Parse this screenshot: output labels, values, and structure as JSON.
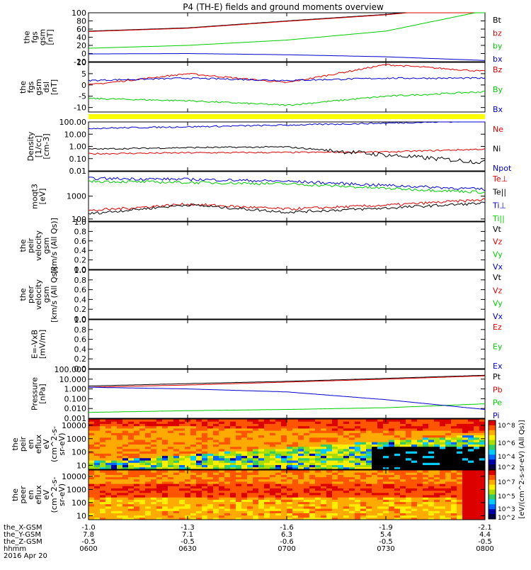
{
  "title": "P4 (TH-E) fields and ground moments overview",
  "colors": {
    "black": "#000000",
    "red": "#dd0000",
    "green": "#00cc00",
    "blue": "#0000cc",
    "yellow": "#ffff00"
  },
  "panels": [
    {
      "id": "fgs-nt",
      "ylabel": [
        "the",
        "fgs",
        "gsm",
        "[nT]"
      ],
      "ylim": [
        -20,
        100
      ],
      "ticks": [
        "100",
        "80",
        "60",
        "40",
        "20",
        "0",
        "-20"
      ],
      "tickvals": [
        100,
        80,
        60,
        40,
        20,
        0,
        -20
      ],
      "legend": [
        {
          "label": "Bt",
          "color": "#000000"
        },
        {
          "label": "bz",
          "color": "#dd0000"
        },
        {
          "label": "by",
          "color": "#00cc00"
        },
        {
          "label": "bx",
          "color": "#0000cc"
        }
      ]
    },
    {
      "id": "fgs-dsl",
      "ylabel": [
        "the",
        "fgs",
        "gsm",
        "dsl",
        "[nT]"
      ],
      "ylim": [
        -12,
        10
      ],
      "ticks": [
        "10",
        "5",
        "0",
        "-5",
        "-10"
      ],
      "tickvals": [
        10,
        5,
        0,
        -5,
        -10
      ],
      "legend": [
        {
          "label": "Bz",
          "color": "#dd0000"
        },
        {
          "label": "By",
          "color": "#00cc00"
        },
        {
          "label": "Bx",
          "color": "#0000cc"
        }
      ]
    },
    {
      "id": "density",
      "ylabel": [
        "Density",
        "[1/cc]",
        "[cm-3]"
      ],
      "log": true,
      "ylim": [
        0.01,
        100
      ],
      "ticks": [
        "100.00",
        "10.00",
        "1.00",
        "0.10",
        "0.01"
      ],
      "tickvals": [
        100,
        10,
        1,
        0.1,
        0.01
      ],
      "legend": [
        {
          "label": "Ne",
          "color": "#dd0000"
        },
        {
          "label": "Ni",
          "color": "#000000"
        },
        {
          "label": "Npot",
          "color": "#0000cc"
        }
      ]
    },
    {
      "id": "temperature",
      "ylabel": [
        "moqt3",
        "[eV]"
      ],
      "log": true,
      "ylim": [
        80,
        12000
      ],
      "ticks": [
        "1000",
        "100"
      ],
      "tickvals": [
        1000,
        100
      ],
      "legend": [
        {
          "label": "Te⊥",
          "color": "#dd0000"
        },
        {
          "label": "Te||",
          "color": "#000000"
        },
        {
          "label": "Ti⊥",
          "color": "#0000cc"
        },
        {
          "label": "Ti||",
          "color": "#00cc00"
        }
      ]
    },
    {
      "id": "peir-velocity",
      "ylabel": [
        "the",
        "peir",
        "velocity",
        "gsm",
        "[km/s (All Qs)]"
      ],
      "ylim": [
        0,
        1
      ],
      "ticks": [
        "1.0",
        "0.8",
        "0.6",
        "0.4",
        "0.2",
        "0.0"
      ],
      "tickvals": [
        1,
        0.8,
        0.6,
        0.4,
        0.2,
        0
      ],
      "legend": [
        {
          "label": "Vt",
          "color": "#000000"
        },
        {
          "label": "Vz",
          "color": "#dd0000"
        },
        {
          "label": "Vy",
          "color": "#00cc00"
        },
        {
          "label": "Vx",
          "color": "#0000cc"
        }
      ]
    },
    {
      "id": "peer-velocity",
      "ylabel": [
        "the",
        "peer",
        "velocity",
        "gsm",
        "[km/s (All Qs)]"
      ],
      "ylim": [
        0,
        1
      ],
      "ticks": [
        "1.0",
        "0.8",
        "0.6",
        "0.4",
        "0.2",
        "0.0"
      ],
      "tickvals": [
        1,
        0.8,
        0.6,
        0.4,
        0.2,
        0
      ],
      "legend": [
        {
          "label": "Vt",
          "color": "#000000"
        },
        {
          "label": "Vz",
          "color": "#dd0000"
        },
        {
          "label": "Vy",
          "color": "#00cc00"
        },
        {
          "label": "Vx",
          "color": "#0000cc"
        }
      ]
    },
    {
      "id": "efield",
      "ylabel": [
        "E=-VxB",
        "[mV/m]"
      ],
      "ylim": [
        0,
        1
      ],
      "ticks": [
        "1.0",
        "0.8",
        "0.6",
        "0.4",
        "0.2",
        "0.0"
      ],
      "tickvals": [
        1,
        0.8,
        0.6,
        0.4,
        0.2,
        0
      ],
      "legend": [
        {
          "label": "Ez",
          "color": "#dd0000"
        },
        {
          "label": "Ey",
          "color": "#00cc00"
        },
        {
          "label": "Ex",
          "color": "#0000cc"
        }
      ]
    },
    {
      "id": "pressure",
      "ylabel": [
        "Pressure",
        "[nPa]"
      ],
      "log": true,
      "ylim": [
        0.001,
        100
      ],
      "ticks": [
        "100.000",
        "10.000",
        "1.000",
        "0.100",
        "0.010",
        "0.001"
      ],
      "tickvals": [
        100,
        10,
        1,
        0.1,
        0.01,
        0.001
      ],
      "legend": [
        {
          "label": "Pt",
          "color": "#000000"
        },
        {
          "label": "Pb",
          "color": "#dd0000"
        },
        {
          "label": "Pe",
          "color": "#00cc00"
        },
        {
          "label": "Pi",
          "color": "#0000cc"
        }
      ]
    },
    {
      "id": "peir-spec",
      "ylabel": [
        "the",
        "peir",
        "en",
        "eflux",
        "eV",
        "(cm^2-s-",
        "sr-eV)"
      ],
      "log": true,
      "ylim": [
        5,
        30000
      ],
      "ticks": [
        "10000",
        "1000",
        "100",
        "10"
      ],
      "tickvals": [
        10000,
        1000,
        100,
        10
      ],
      "legend": []
    },
    {
      "id": "peer-spec",
      "ylabel": [
        "the",
        "peer",
        "en",
        "eflux",
        "eV",
        "(cm^2-s-",
        "sr-eV)"
      ],
      "log": true,
      "ylim": [
        5,
        30000
      ],
      "ticks": [
        "10000",
        "1000",
        "100",
        "10"
      ],
      "tickvals": [
        10000,
        1000,
        100,
        10
      ],
      "legend": []
    }
  ],
  "colorbar": {
    "label": "[eV/(cm^2-s-sr-eV) (All Qs)]",
    "ticks": [
      "10^8",
      "10^7",
      "10^6",
      "10^5",
      "10^4",
      "10^3",
      "10^2"
    ]
  },
  "xaxis": {
    "rows": [
      {
        "label": "the_X-GSM",
        "values": [
          "-1.0",
          "-1.3",
          "-1.6",
          "-1.9",
          "-2.1"
        ]
      },
      {
        "label": "the_Y-GSM",
        "values": [
          "7.8",
          "7.1",
          "6.3",
          "5.4",
          "4.4"
        ]
      },
      {
        "label": "the_Z-GSM",
        "values": [
          "-0.5",
          "-0.5",
          "-0.6",
          "-0.5",
          "-0.5"
        ]
      },
      {
        "label": "hhmm",
        "values": [
          "0600",
          "0630",
          "0700",
          "0730",
          "0800"
        ]
      }
    ],
    "date": "2016 Apr 20"
  },
  "chart_data": [
    {
      "type": "line",
      "panel": "fgs-nt",
      "x": [
        "0600",
        "0630",
        "0700",
        "0730",
        "0800"
      ],
      "ylim": [
        -20,
        100
      ],
      "series": [
        {
          "name": "Bt",
          "values": [
            55,
            63,
            80,
            96,
            120
          ]
        },
        {
          "name": "bz",
          "values": [
            54,
            62,
            79,
            95,
            118
          ]
        },
        {
          "name": "by",
          "values": [
            13,
            20,
            33,
            55,
            105
          ]
        },
        {
          "name": "bx",
          "values": [
            -1,
            0,
            -3,
            -8,
            -17
          ]
        }
      ]
    },
    {
      "type": "line",
      "panel": "fgs-dsl",
      "x": [
        "0600",
        "0630",
        "0700",
        "0730",
        "0800"
      ],
      "ylim": [
        -12,
        10
      ],
      "series": [
        {
          "name": "Bz",
          "values": [
            0,
            5,
            1,
            9,
            6
          ]
        },
        {
          "name": "By",
          "values": [
            -6,
            -7,
            -9,
            -5,
            -3
          ]
        },
        {
          "name": "Bx",
          "values": [
            2,
            3,
            2,
            3,
            3
          ]
        }
      ]
    },
    {
      "type": "line",
      "panel": "density",
      "x": [
        "0600",
        "0630",
        "0700",
        "0730",
        "0800"
      ],
      "ylim": [
        0.01,
        100
      ],
      "series": [
        {
          "name": "Ne",
          "values": [
            0.25,
            0.3,
            0.32,
            0.35,
            0.6
          ]
        },
        {
          "name": "Ni",
          "values": [
            0.6,
            0.8,
            0.9,
            0.2,
            0.05
          ]
        },
        {
          "name": "Npot",
          "values": [
            30,
            40,
            55,
            80,
            120
          ]
        }
      ]
    },
    {
      "type": "line",
      "panel": "temperature",
      "x": [
        "0600",
        "0630",
        "0700",
        "0730",
        "0800"
      ],
      "ylim": [
        80,
        12000
      ],
      "series": [
        {
          "name": "Te⊥",
          "values": [
            230,
            450,
            270,
            400,
            700
          ]
        },
        {
          "name": "Te||",
          "values": [
            170,
            420,
            200,
            300,
            500
          ]
        },
        {
          "name": "Ti⊥",
          "values": [
            6000,
            5500,
            4500,
            3000,
            2000
          ]
        },
        {
          "name": "Ti||",
          "values": [
            4500,
            4000,
            3500,
            2200,
            1500
          ]
        }
      ]
    },
    {
      "type": "line",
      "panel": "pressure",
      "x": [
        "0600",
        "0630",
        "0700",
        "0730",
        "0800"
      ],
      "ylim": [
        0.001,
        100
      ],
      "series": [
        {
          "name": "Pt",
          "values": [
            2,
            3.5,
            6,
            12,
            25
          ]
        },
        {
          "name": "Pb",
          "values": [
            1.5,
            2.5,
            5,
            10,
            22
          ]
        },
        {
          "name": "Pe",
          "values": [
            0.004,
            0.006,
            0.008,
            0.012,
            0.03
          ]
        },
        {
          "name": "Pi",
          "values": [
            1.5,
            1.0,
            0.5,
            0.08,
            0.008
          ]
        }
      ]
    }
  ]
}
